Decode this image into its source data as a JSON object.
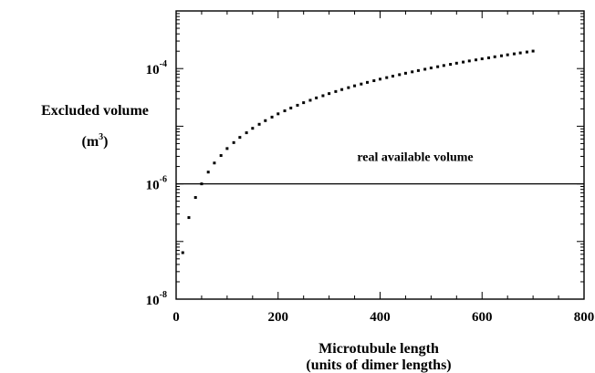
{
  "chart_data": {
    "type": "scatter",
    "title": "",
    "xlabel": "Microtubule length",
    "xlabel_line2": "(units of dimer lengths)",
    "ylabel": "Excluded volume",
    "ylabel_unit_base": "(m",
    "ylabel_unit_exp": "3",
    "ylabel_unit_close": ")",
    "xlim": [
      0,
      800
    ],
    "ylim": [
      1e-08,
      0.001
    ],
    "y_scale": "log",
    "grid": false,
    "legend": "none",
    "x_ticks": [
      {
        "value": 0,
        "label": "0"
      },
      {
        "value": 200,
        "label": "200"
      },
      {
        "value": 400,
        "label": "400"
      },
      {
        "value": 600,
        "label": "600"
      },
      {
        "value": 800,
        "label": "800"
      }
    ],
    "y_ticks": [
      {
        "value": 1e-08,
        "base": "10",
        "exp": "-8"
      },
      {
        "value": 1e-06,
        "base": "10",
        "exp": "-6"
      },
      {
        "value": 0.0001,
        "base": "10",
        "exp": "-4"
      }
    ],
    "series": [
      {
        "marker": "square-dot",
        "color": "#000000",
        "x": [
          13,
          25,
          38,
          50,
          63,
          75,
          88,
          100,
          113,
          125,
          138,
          150,
          163,
          175,
          188,
          200,
          213,
          225,
          238,
          250,
          263,
          275,
          288,
          300,
          313,
          325,
          338,
          350,
          363,
          375,
          388,
          400,
          413,
          425,
          438,
          450,
          463,
          475,
          488,
          500,
          513,
          525,
          538,
          550,
          563,
          575,
          588,
          600,
          613,
          625,
          638,
          650,
          663,
          675,
          688,
          700
        ],
        "y": [
          6.4e-08,
          2.6e-07,
          5.8e-07,
          1e-06,
          1.6e-06,
          2.3e-06,
          3.1e-06,
          4.1e-06,
          5.2e-06,
          6.4e-06,
          7.7e-06,
          9.2e-06,
          1.08e-05,
          1.25e-05,
          1.44e-05,
          1.64e-05,
          1.85e-05,
          2.07e-05,
          2.31e-05,
          2.56e-05,
          2.82e-05,
          3.1e-05,
          3.38e-05,
          3.68e-05,
          4e-05,
          4.33e-05,
          4.67e-05,
          5.02e-05,
          5.39e-05,
          5.76e-05,
          6.16e-05,
          6.56e-05,
          6.97e-05,
          7.4e-05,
          7.84e-05,
          8.3e-05,
          8.77e-05,
          9.24e-05,
          9.74e-05,
          0.0001025,
          0.0001077,
          0.000113,
          0.0001185,
          0.000124,
          0.0001297,
          0.0001356,
          0.0001415,
          0.0001476,
          0.0001538,
          0.0001602,
          0.0001667,
          0.0001733,
          0.00018,
          0.0001868,
          0.0001938,
          0.000201
        ]
      }
    ],
    "reference_line": {
      "y": 1e-06,
      "label": "real available volume",
      "color": "#000000"
    }
  }
}
